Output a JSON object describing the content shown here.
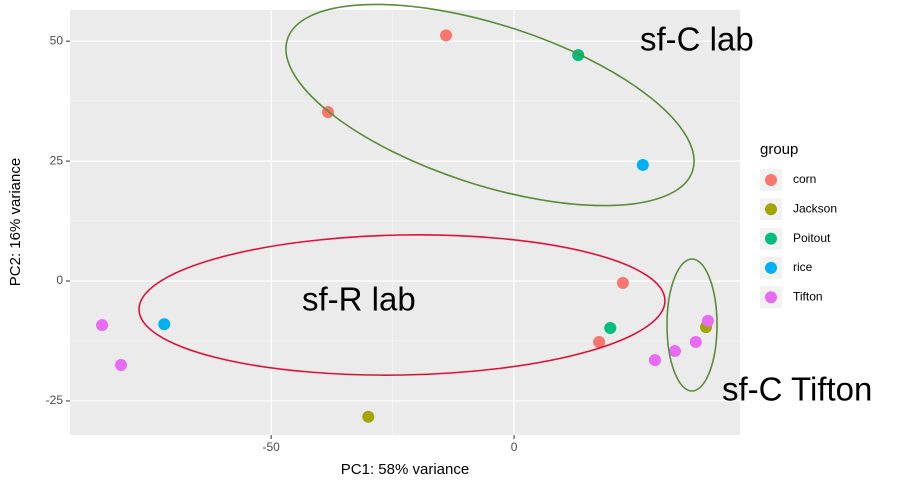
{
  "chart_data": {
    "type": "scatter",
    "x_label": "PC1: 58% variance",
    "y_label": "PC2: 16% variance",
    "legend_title": "group",
    "legend": "right",
    "xlim": [
      -91.4,
      46.5
    ],
    "ylim": [
      -32.1,
      56.5
    ],
    "xticks": [
      -50,
      0
    ],
    "yticks": [
      -25,
      0,
      25,
      50
    ],
    "grid": true,
    "series": [
      {
        "name": "corn",
        "color": "#F8766D",
        "x": [
          -14,
          -38.3,
          22.4,
          17.5
        ],
        "values": [
          51.2,
          35.2,
          -0.4,
          -12.7
        ]
      },
      {
        "name": "Jackson",
        "color": "#A3A500",
        "x": [
          -30,
          39.5
        ],
        "values": [
          -28.3,
          -9.6
        ]
      },
      {
        "name": "Poitout",
        "color": "#00BF7D",
        "x": [
          13.2,
          19.8
        ],
        "values": [
          47.1,
          -9.8
        ]
      },
      {
        "name": "rice",
        "color": "#00B0F6",
        "x": [
          26.5,
          -72
        ],
        "values": [
          24.2,
          -9
        ]
      },
      {
        "name": "Tifton",
        "color": "#E76BF3",
        "x": [
          -84.8,
          -80.9,
          29,
          33.1,
          37.4,
          39.9
        ],
        "values": [
          -9.2,
          -17.5,
          -16.5,
          -14.6,
          -12.7,
          -8.3
        ]
      }
    ],
    "annotations": [
      "sf-C lab",
      "sf-R lab",
      "sf-C Tifton"
    ]
  }
}
